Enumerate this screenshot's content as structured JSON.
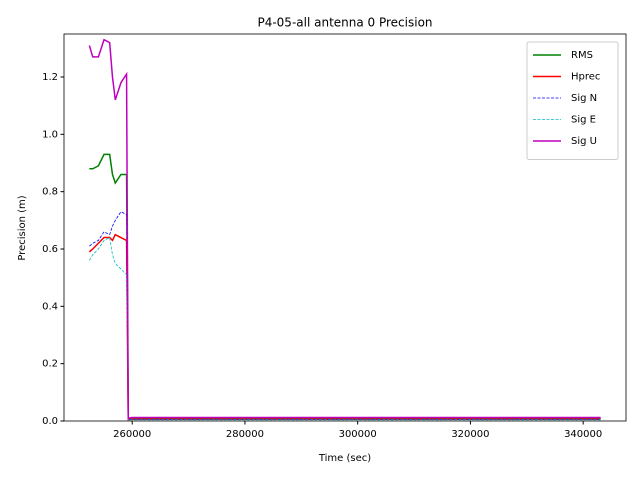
{
  "chart_data": {
    "type": "line",
    "title": "P4-05-all antenna 0 Precision",
    "xlabel": "Time (sec)",
    "ylabel": "Precision (m)",
    "x": [
      252400,
      253000,
      254000,
      255000,
      256000,
      256500,
      257000,
      258000,
      259000,
      259300,
      260000,
      280000,
      300000,
      320000,
      340000,
      343100
    ],
    "series": [
      {
        "name": "RMS",
        "color": "#008000",
        "dash": false,
        "values": [
          0.88,
          0.88,
          0.89,
          0.93,
          0.93,
          0.86,
          0.83,
          0.86,
          0.86,
          0.01,
          0.01,
          0.01,
          0.01,
          0.01,
          0.01,
          0.01
        ]
      },
      {
        "name": "Hprec",
        "color": "#ff0000",
        "dash": false,
        "values": [
          0.59,
          0.6,
          0.62,
          0.64,
          0.64,
          0.63,
          0.65,
          0.64,
          0.63,
          0.005,
          0.006,
          0.006,
          0.006,
          0.006,
          0.006,
          0.006
        ]
      },
      {
        "name": "Sig N",
        "color": "#0000ff",
        "dash": true,
        "values": [
          0.61,
          0.62,
          0.63,
          0.66,
          0.65,
          0.68,
          0.7,
          0.73,
          0.72,
          0.005,
          0.005,
          0.005,
          0.005,
          0.005,
          0.005,
          0.005
        ]
      },
      {
        "name": "Sig E",
        "color": "#00bfbf",
        "dash": true,
        "values": [
          0.56,
          0.58,
          0.6,
          0.63,
          0.64,
          0.58,
          0.55,
          0.53,
          0.51,
          0.004,
          0.004,
          0.004,
          0.004,
          0.004,
          0.004,
          0.004
        ]
      },
      {
        "name": "Sig U",
        "color": "#bf00bf",
        "dash": false,
        "values": [
          1.31,
          1.27,
          1.27,
          1.33,
          1.32,
          1.2,
          1.12,
          1.18,
          1.21,
          0.01,
          0.012,
          0.012,
          0.012,
          0.012,
          0.012,
          0.012
        ]
      }
    ],
    "xlim": [
      247900,
      347600
    ],
    "ylim": [
      0,
      1.35
    ],
    "xticks": [
      260000,
      280000,
      300000,
      320000,
      340000
    ],
    "yticks": [
      {
        "value": 0,
        "label": "0.0"
      },
      {
        "value": 0.2,
        "label": "0.2"
      },
      {
        "value": 0.4,
        "label": "0.4"
      },
      {
        "value": 0.6,
        "label": "0.6"
      },
      {
        "value": 0.8,
        "label": "0.8"
      },
      {
        "value": 1.0,
        "label": "1.0"
      },
      {
        "value": 1.2,
        "label": "1.2"
      }
    ],
    "grid": false,
    "legend": "upper right"
  }
}
